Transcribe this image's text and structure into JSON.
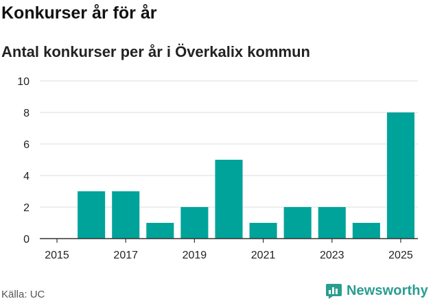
{
  "header": {
    "title": "Konkurser år för år",
    "subtitle": "Antal konkurser per år i Överkalix kommun"
  },
  "footer": {
    "source": "Källa: UC",
    "brand": "Newsworthy",
    "brand_icon": "bar-chart-logo-icon"
  },
  "colors": {
    "bar": "#00a39a",
    "grid": "#dddddd",
    "brand": "#2a9d8f"
  },
  "chart_data": {
    "type": "bar",
    "x": [
      2016,
      2017,
      2018,
      2019,
      2020,
      2021,
      2022,
      2023,
      2024,
      2025
    ],
    "values": [
      3,
      3,
      1,
      2,
      5,
      1,
      2,
      2,
      1,
      8
    ],
    "x_ticks": [
      2015,
      2017,
      2019,
      2021,
      2023,
      2025
    ],
    "y_ticks": [
      0,
      2,
      4,
      6,
      8,
      10
    ],
    "xlim": [
      2014.5,
      2025.5
    ],
    "ylim": [
      0,
      10
    ],
    "grid": true
  }
}
